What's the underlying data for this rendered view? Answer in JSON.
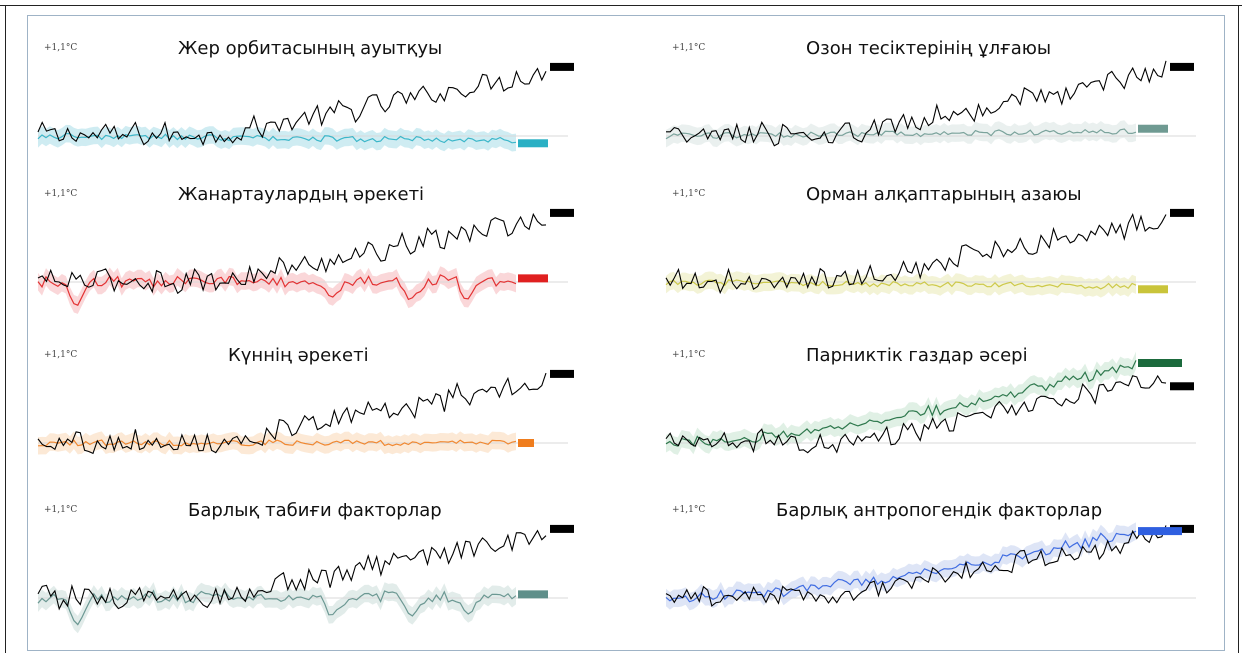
{
  "chart_data": [
    {
      "type": "line",
      "title": "Жер орбитасының ауытқуы",
      "ylabel": "+1,1°C",
      "series": [
        {
          "role": "observed",
          "color": "#000000",
          "end_level": 0.95
        },
        {
          "role": "forcing",
          "color": "#2ab0c4",
          "end_level": -0.1
        }
      ],
      "band_color": "#bfe6ed"
    },
    {
      "type": "line",
      "title": "Жанартаулардың әрекеті",
      "ylabel": "+1,1°C",
      "series": [
        {
          "role": "observed",
          "color": "#000000",
          "end_level": 0.95
        },
        {
          "role": "forcing",
          "color": "#e02020",
          "end_level": 0.05
        }
      ],
      "band_color": "#f8c9cc"
    },
    {
      "type": "line",
      "title": "Күннің әрекеті",
      "ylabel": "+1,1°C",
      "series": [
        {
          "role": "observed",
          "color": "#000000",
          "end_level": 0.95
        },
        {
          "role": "forcing",
          "color": "#ef7d1e",
          "end_level": 0.0
        }
      ],
      "band_color": "#fbe2c8"
    },
    {
      "type": "line",
      "title": "Барлық табиғи факторлар",
      "ylabel": "+1,1°C",
      "series": [
        {
          "role": "observed",
          "color": "#000000",
          "end_level": 0.95
        },
        {
          "role": "forcing",
          "color": "#5f8f8a",
          "end_level": 0.05
        }
      ],
      "band_color": "#d8e6e3"
    },
    {
      "type": "line",
      "title": "Озон тесіктерінің ұлғаюы",
      "ylabel": "+1,1°C",
      "series": [
        {
          "role": "observed",
          "color": "#000000",
          "end_level": 0.95
        },
        {
          "role": "forcing",
          "color": "#6f9a92",
          "end_level": 0.1
        }
      ],
      "band_color": "#e3ebe9"
    },
    {
      "type": "line",
      "title": "Орман алқаптарының азаюы",
      "ylabel": "+1,1°C",
      "series": [
        {
          "role": "observed",
          "color": "#000000",
          "end_level": 0.95
        },
        {
          "role": "forcing",
          "color": "#c9c43a",
          "end_level": -0.1
        }
      ],
      "band_color": "#efefc8"
    },
    {
      "type": "line",
      "title": "Парниктік газдар әсері",
      "ylabel": "+1,1°C",
      "series": [
        {
          "role": "observed",
          "color": "#000000",
          "end_level": 0.78
        },
        {
          "role": "forcing",
          "color": "#1b6a3c",
          "end_level": 1.1
        }
      ],
      "band_color": "#d6ebdc"
    },
    {
      "type": "line",
      "title": "Барлық антропогендік факторлар",
      "ylabel": "+1,1°C",
      "series": [
        {
          "role": "observed",
          "color": "#000000",
          "end_level": 0.95
        },
        {
          "role": "forcing",
          "color": "#2f5fe0",
          "end_level": 0.92
        }
      ],
      "band_color": "#d3dcf3"
    }
  ]
}
